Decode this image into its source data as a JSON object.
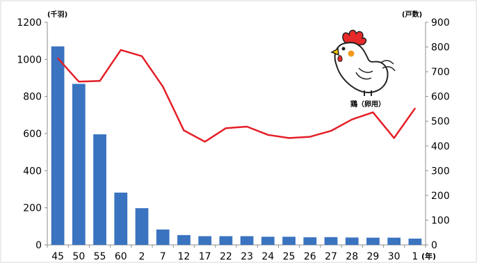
{
  "chart_data": {
    "type": "bar",
    "categories": [
      "45",
      "50",
      "55",
      "60",
      "2",
      "7",
      "12",
      "17",
      "22",
      "23",
      "24",
      "25",
      "26",
      "27",
      "28",
      "29",
      "30",
      "1"
    ],
    "series": [
      {
        "name": "",
        "type": "bar",
        "axis": "left",
        "color": "#3a73c0",
        "values": [
          1070,
          868,
          596,
          282,
          198,
          83,
          53,
          47,
          47,
          47,
          44,
          44,
          41,
          42,
          40,
          39,
          39,
          34
        ]
      },
      {
        "name": "",
        "type": "line",
        "axis": "right",
        "color": "#e41e26",
        "values": [
          755,
          660,
          663,
          788,
          763,
          640,
          463,
          417,
          472,
          478,
          445,
          432,
          437,
          461,
          507,
          536,
          432,
          552
        ]
      }
    ],
    "ylim_left": [
      0,
      1200
    ],
    "yticks_left": [
      0,
      200,
      400,
      600,
      800,
      1000,
      1200
    ],
    "ylim_right": [
      0,
      900
    ],
    "yticks_right": [
      0,
      100,
      200,
      300,
      400,
      500,
      600,
      700,
      800,
      900
    ],
    "ylabel_left": "(千羽)",
    "ylabel_right": "(戸数)",
    "xunit": "(年)",
    "grid": false,
    "legend": "none",
    "annotation": "鶏（卵用）",
    "mascot": "chicken-illustration"
  }
}
